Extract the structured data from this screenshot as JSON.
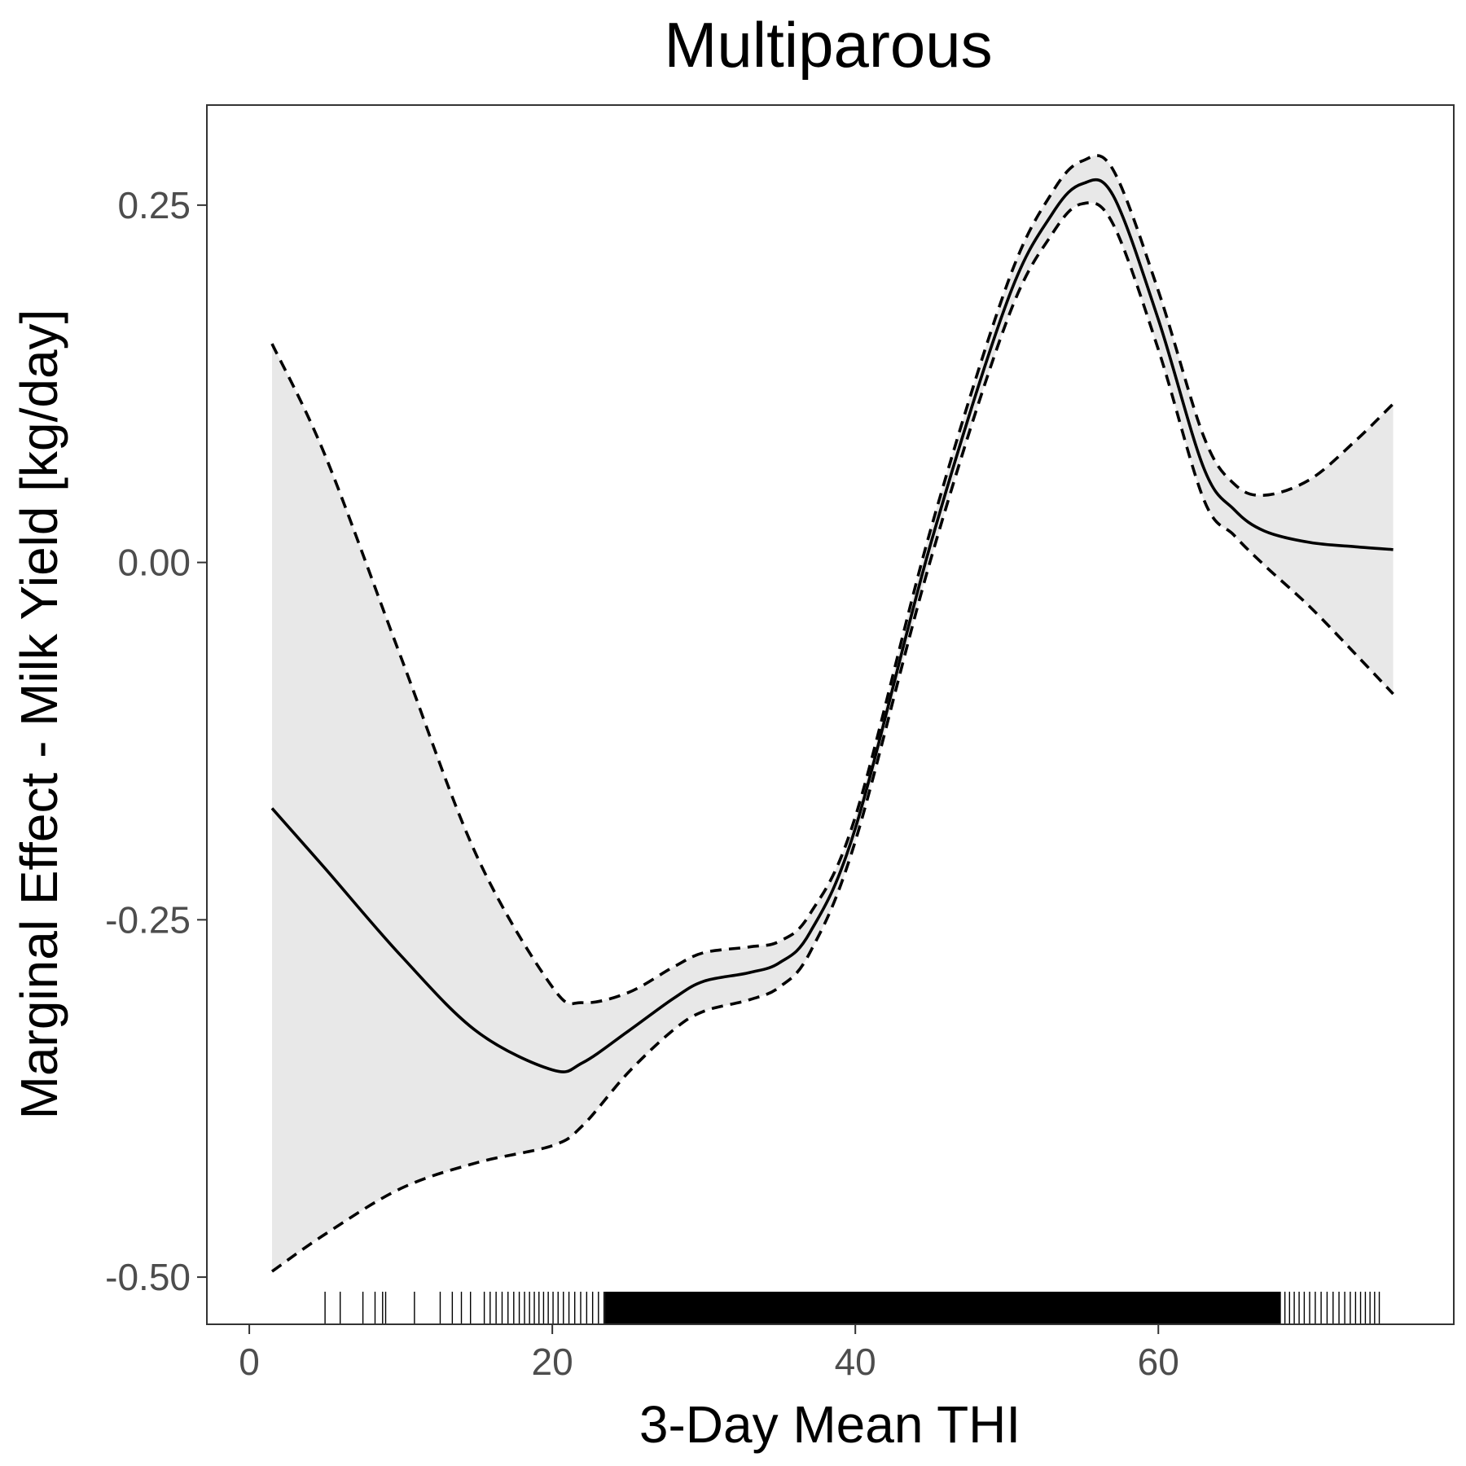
{
  "chart_data": {
    "type": "line",
    "title": "Multiparous",
    "xlabel": "3-Day Mean THI",
    "ylabel": "Marginal Effect - Milk Yield [kg/day]",
    "xlim": [
      -2.8,
      79.5
    ],
    "ylim": [
      -0.533,
      0.32
    ],
    "x_ticks": [
      0,
      20,
      40,
      60
    ],
    "x_tick_labels": [
      "0",
      "20",
      "40",
      "60"
    ],
    "y_ticks": [
      0.25,
      0.0,
      -0.25,
      -0.5
    ],
    "y_tick_labels": [
      "0.25",
      "0.00",
      "-0.25",
      "-0.50"
    ],
    "grid": false,
    "legend": "none",
    "x": [
      1.5,
      5,
      10,
      15,
      20,
      22,
      25,
      28,
      30,
      33,
      35,
      37,
      40,
      45,
      50,
      53,
      55,
      57,
      60,
      63,
      65,
      67,
      70,
      73,
      75.5
    ],
    "series": [
      {
        "role": "estimate",
        "style": "solid",
        "values": [
          -0.172,
          -0.214,
          -0.275,
          -0.328,
          -0.355,
          -0.35,
          -0.328,
          -0.305,
          -0.293,
          -0.287,
          -0.28,
          -0.259,
          -0.186,
          0.014,
          0.182,
          0.244,
          0.265,
          0.257,
          0.17,
          0.066,
          0.037,
          0.022,
          0.014,
          0.011,
          0.009
        ]
      },
      {
        "role": "upper",
        "style": "dashed",
        "values": [
          0.153,
          0.075,
          -0.066,
          -0.205,
          -0.297,
          -0.308,
          -0.301,
          -0.283,
          -0.273,
          -0.269,
          -0.265,
          -0.246,
          -0.178,
          0.024,
          0.194,
          0.259,
          0.281,
          0.275,
          0.19,
          0.088,
          0.055,
          0.047,
          0.058,
          0.085,
          0.111
        ]
      },
      {
        "role": "lower",
        "style": "dashed",
        "values": [
          -0.496,
          -0.47,
          -0.438,
          -0.42,
          -0.408,
          -0.394,
          -0.357,
          -0.327,
          -0.314,
          -0.306,
          -0.297,
          -0.273,
          -0.195,
          0.003,
          0.169,
          0.23,
          0.251,
          0.237,
          0.149,
          0.044,
          0.019,
          -0.002,
          -0.031,
          -0.064,
          -0.092
        ]
      }
    ],
    "rug": {
      "sparse_x": [
        5,
        6,
        7.5,
        8.3,
        8.8,
        9.0,
        10.9,
        12.6,
        13.4,
        14.0,
        14.6
      ],
      "dense_ranges": [
        [
          15.6,
          23.5
        ],
        [
          23.5,
          68.0
        ],
        [
          68.0,
          74.7
        ]
      ]
    },
    "colors": {
      "line": "#000000",
      "ribbon": "#e8e8e8",
      "panel_border": "#333333",
      "tick_label": "#4d4d4d",
      "background": "#ffffff"
    }
  }
}
